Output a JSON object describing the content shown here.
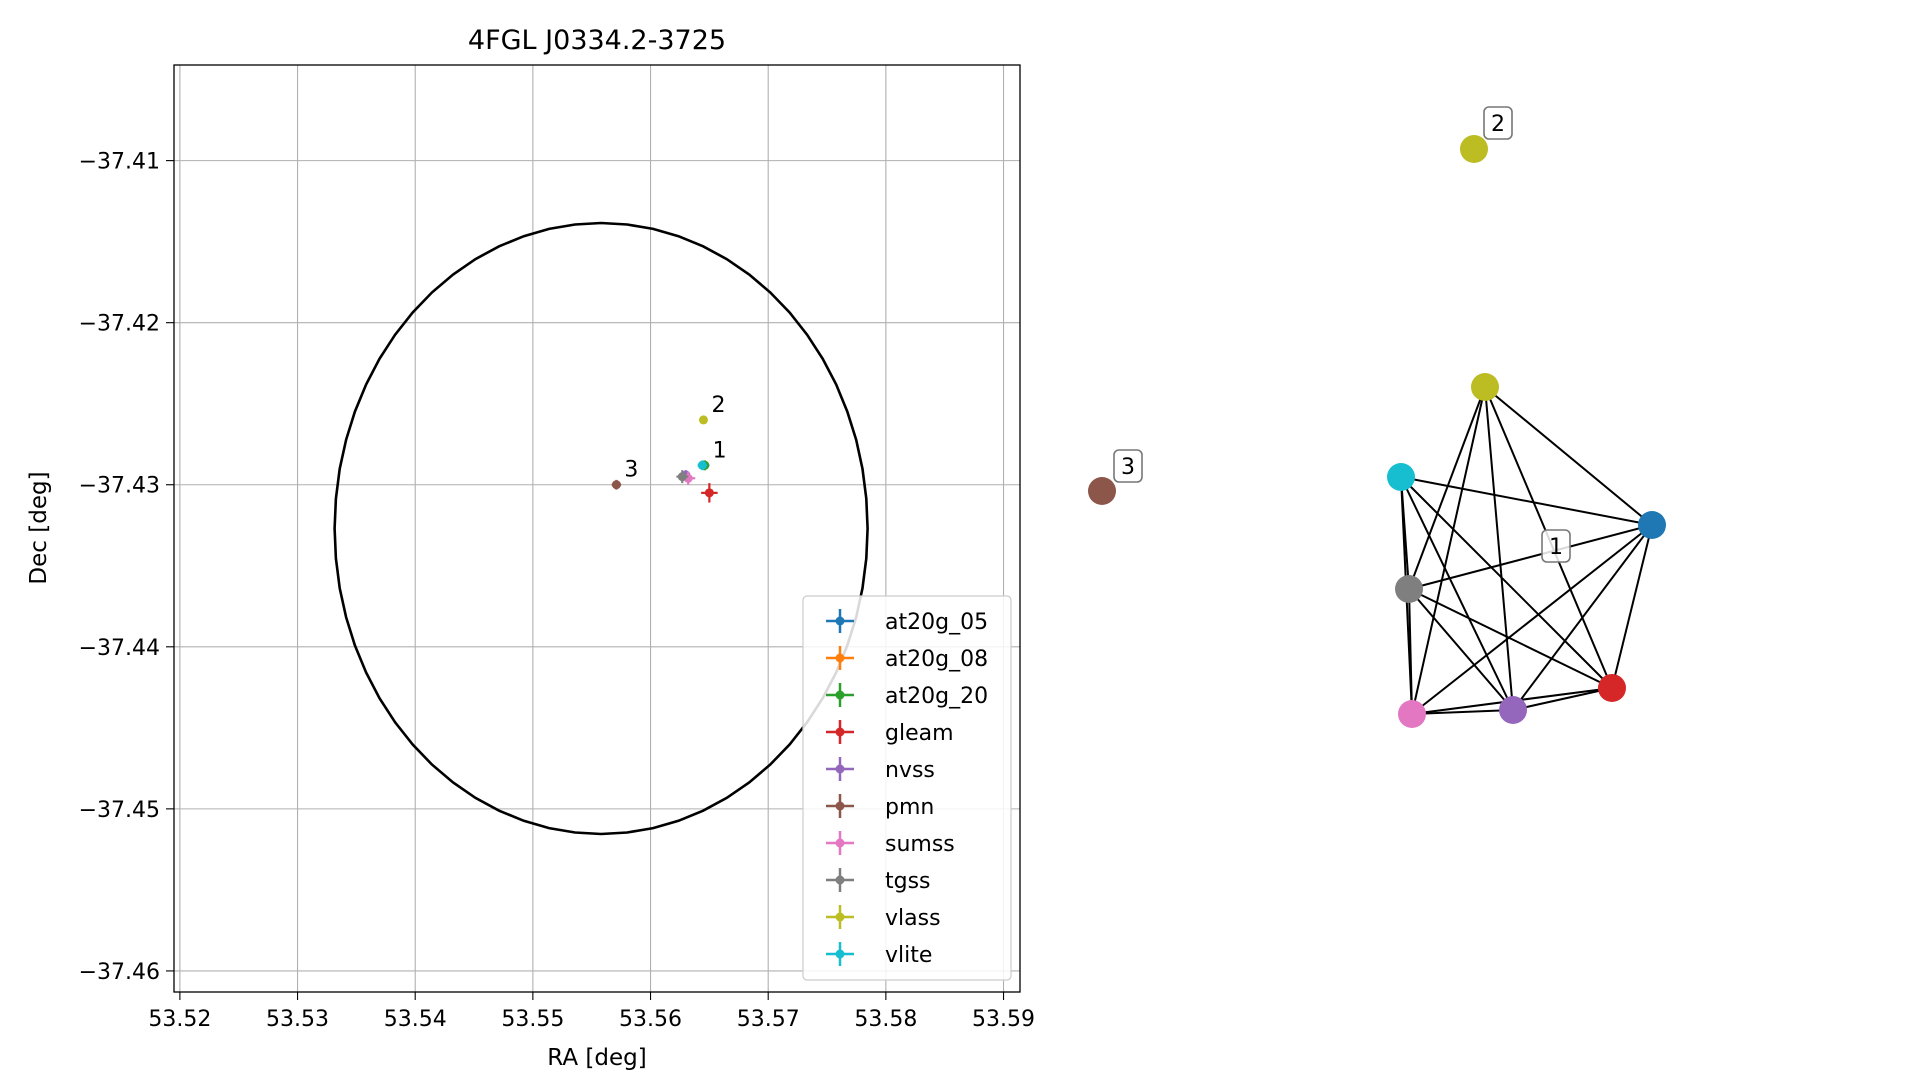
{
  "chart_data": [
    {
      "type": "scatter",
      "title": "4FGL J0334.2-3725",
      "xlabel": "RA [deg]",
      "ylabel": "Dec [deg]",
      "xlim": [
        53.5195,
        53.5914
      ],
      "ylim": [
        -37.4613,
        -37.4041
      ],
      "x_ticks": [
        53.52,
        53.53,
        53.54,
        53.55,
        53.56,
        53.57,
        53.58,
        53.59
      ],
      "x_tick_labels": [
        "53.52",
        "53.53",
        "53.54",
        "53.55",
        "53.56",
        "53.57",
        "53.58",
        "53.59"
      ],
      "y_ticks": [
        -37.41,
        -37.42,
        -37.43,
        -37.44,
        -37.45,
        -37.46
      ],
      "y_tick_labels": [
        "−37.41",
        "−37.42",
        "−37.43",
        "−37.44",
        "−37.45",
        "−37.46"
      ],
      "grid": true,
      "legend_position": "lower-right",
      "ellipse": {
        "center": [
          53.5558,
          -37.4327
        ],
        "ra_semi_axis": 0.02265,
        "dec_semi_axis": 0.01885
      },
      "series": [
        {
          "name": "at20g_05",
          "color": "#1f77b4",
          "points": [
            {
              "x": 53.5646,
              "y": -37.4288,
              "xerr": 0.0004,
              "yerr": 0.0003
            }
          ]
        },
        {
          "name": "at20g_08",
          "color": "#ff7f0e",
          "points": [
            {
              "x": 53.5646,
              "y": -37.4288,
              "xerr": 0.0003,
              "yerr": 0.0003
            }
          ]
        },
        {
          "name": "at20g_20",
          "color": "#2ca02c",
          "points": [
            {
              "x": 53.5646,
              "y": -37.4288,
              "xerr": 0.0003,
              "yerr": 0.0003
            }
          ]
        },
        {
          "name": "gleam",
          "color": "#d62728",
          "points": [
            {
              "x": 53.565,
              "y": -37.4305,
              "xerr": 0.0007,
              "yerr": 0.0006
            }
          ]
        },
        {
          "name": "nvss",
          "color": "#9467bd",
          "points": [
            {
              "x": 53.563,
              "y": -37.4294,
              "xerr": 0.0003,
              "yerr": 0.0003
            }
          ]
        },
        {
          "name": "pmn",
          "color": "#8c564b",
          "points": [
            {
              "x": 53.5571,
              "y": -37.43,
              "xerr": 0.0004,
              "yerr": 0.0003
            }
          ]
        },
        {
          "name": "sumss",
          "color": "#e377c2",
          "points": [
            {
              "x": 53.5632,
              "y": -37.4296,
              "xerr": 0.0006,
              "yerr": 0.0004
            }
          ]
        },
        {
          "name": "tgss",
          "color": "#7f7f7f",
          "points": [
            {
              "x": 53.5627,
              "y": -37.4295,
              "xerr": 0.0005,
              "yerr": 0.0004
            }
          ]
        },
        {
          "name": "vlass",
          "color": "#bcbd22",
          "points": [
            {
              "x": 53.5645,
              "y": -37.426,
              "xerr": 0.0001,
              "yerr": 0.0001
            }
          ]
        },
        {
          "name": "vlite",
          "color": "#17becf",
          "points": [
            {
              "x": 53.5644,
              "y": -37.4288,
              "xerr": 0.0004,
              "yerr": 0.0003
            }
          ]
        }
      ],
      "annotations": [
        {
          "text": "1",
          "x": 53.5646,
          "y": -37.4288
        },
        {
          "text": "2",
          "x": 53.5645,
          "y": -37.426
        },
        {
          "text": "3",
          "x": 53.5571,
          "y": -37.43
        }
      ]
    }
  ],
  "graph": {
    "nodes": [
      {
        "id": "at20g_05",
        "color": "#1f77b4"
      },
      {
        "id": "gleam",
        "color": "#d62728"
      },
      {
        "id": "nvss",
        "color": "#9467bd"
      },
      {
        "id": "sumss",
        "color": "#e377c2"
      },
      {
        "id": "tgss",
        "color": "#7f7f7f"
      },
      {
        "id": "vlite",
        "color": "#17becf"
      },
      {
        "id": "vlass-a",
        "color": "#bcbd22"
      },
      {
        "id": "vlass-b",
        "color": "#bcbd22"
      },
      {
        "id": "pmn",
        "color": "#8c564b"
      }
    ],
    "edges": [
      [
        "vlass-a",
        "at20g_05"
      ],
      [
        "vlass-a",
        "gleam"
      ],
      [
        "vlass-a",
        "nvss"
      ],
      [
        "vlass-a",
        "sumss"
      ],
      [
        "vlass-a",
        "tgss"
      ],
      [
        "vlite",
        "at20g_05"
      ],
      [
        "vlite",
        "gleam"
      ],
      [
        "vlite",
        "nvss"
      ],
      [
        "vlite",
        "sumss"
      ],
      [
        "vlite",
        "tgss"
      ],
      [
        "tgss",
        "at20g_05"
      ],
      [
        "tgss",
        "gleam"
      ],
      [
        "tgss",
        "nvss"
      ],
      [
        "tgss",
        "sumss"
      ],
      [
        "at20g_05",
        "sumss"
      ],
      [
        "at20g_05",
        "nvss"
      ],
      [
        "at20g_05",
        "gleam"
      ],
      [
        "sumss",
        "nvss"
      ],
      [
        "sumss",
        "gleam"
      ],
      [
        "nvss",
        "gleam"
      ]
    ],
    "labels": [
      {
        "text": "1",
        "group": "component-1"
      },
      {
        "text": "2",
        "group": "component-2"
      },
      {
        "text": "3",
        "group": "component-3"
      }
    ]
  }
}
